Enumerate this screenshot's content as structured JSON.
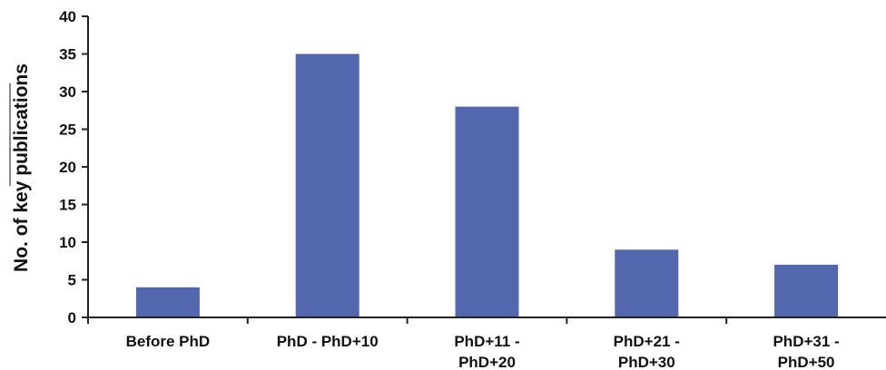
{
  "chart_data": {
    "type": "bar",
    "title": "",
    "xlabel": "",
    "ylabel": "No. of key publications",
    "categories": [
      [
        "Before PhD"
      ],
      [
        "PhD - PhD+10"
      ],
      [
        "PhD+11 -",
        "PhD+20"
      ],
      [
        "PhD+21 -",
        "PhD+30"
      ],
      [
        "PhD+31 -",
        "PhD+50"
      ]
    ],
    "values": [
      4,
      35,
      28,
      9,
      7
    ],
    "ylim": [
      0,
      40
    ],
    "yticks": [
      0,
      5,
      10,
      15,
      20,
      25,
      30,
      35,
      40
    ],
    "grid": false,
    "legend": "none",
    "bar_color": "#5267ad",
    "axis_color": "#222222"
  }
}
